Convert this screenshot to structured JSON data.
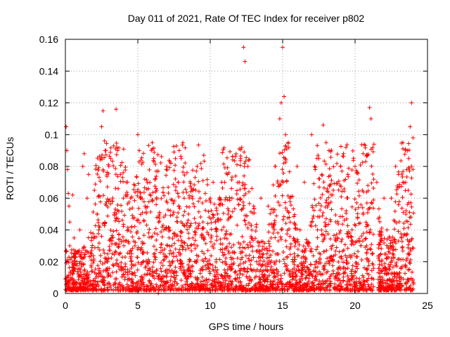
{
  "chart_data": {
    "type": "scatter",
    "title": "Day 011 of 2021, Rate Of TEC Index for receiver p802",
    "xlabel": "GPS time / hours",
    "ylabel": "ROTI / TECUs",
    "xlim": [
      0,
      25
    ],
    "ylim": [
      0,
      0.16
    ],
    "xticks": [
      "0",
      "5",
      "10",
      "15",
      "20",
      "25"
    ],
    "yticks": [
      "0",
      "0.02",
      "0.04",
      "0.06",
      "0.08",
      "0.1",
      "0.12",
      "0.14",
      "0.16"
    ],
    "grid": true,
    "marker": "plus",
    "color": "#ff0000",
    "series": [
      {
        "x": [
          0.05,
          0.1,
          0.15,
          0.2,
          0.25,
          0.3,
          0.5,
          0.6,
          1.2,
          1.3,
          1.5,
          1.6,
          2.0,
          2.2,
          2.5,
          2.6,
          2.7,
          2.8,
          3.0,
          3.5,
          3.6,
          3.8,
          4.0,
          4.2,
          4.5,
          5.0,
          5.1,
          5.2,
          5.5,
          6.0,
          6.1,
          6.3,
          6.5,
          7.0,
          7.5,
          7.6,
          7.8,
          8.0,
          8.2,
          8.5,
          9.0,
          9.1,
          9.3,
          9.5,
          10.0,
          10.2,
          10.5,
          11.0,
          11.5,
          12.0,
          12.1,
          12.3,
          12.4,
          12.6,
          13.0,
          13.5,
          14.0,
          14.5,
          14.8,
          14.9,
          15.0,
          15.1,
          15.2,
          15.5,
          16.0,
          16.5,
          17.0,
          17.2,
          17.5,
          17.8,
          18.0,
          18.2,
          18.5,
          19.0,
          19.2,
          19.5,
          20.0,
          20.5,
          21.0,
          21.1,
          21.3,
          21.5,
          22.0,
          22.5,
          22.8,
          23.0,
          23.3,
          23.5,
          23.7,
          23.8,
          23.9,
          24.0,
          0.3,
          1.0,
          2.3,
          3.2,
          4.8,
          6.8,
          8.8,
          10.8,
          12.8,
          14.2,
          16.2,
          18.8,
          20.8,
          22.2,
          23.2,
          0.8,
          1.8,
          2.9,
          4.3,
          5.8,
          7.2,
          9.8,
          11.2,
          13.2,
          15.8,
          17.3,
          19.8,
          21.8,
          22.6
        ],
        "y": [
          0.105,
          0.09,
          0.078,
          0.063,
          0.055,
          0.045,
          0.062,
          0.035,
          0.08,
          0.088,
          0.06,
          0.075,
          0.065,
          0.05,
          0.105,
          0.115,
          0.096,
          0.09,
          0.08,
          0.116,
          0.09,
          0.075,
          0.06,
          0.07,
          0.06,
          0.1,
          0.09,
          0.06,
          0.055,
          0.095,
          0.085,
          0.065,
          0.05,
          0.08,
          0.089,
          0.085,
          0.07,
          0.085,
          0.06,
          0.05,
          0.065,
          0.08,
          0.06,
          0.045,
          0.06,
          0.07,
          0.05,
          0.07,
          0.06,
          0.091,
          0.085,
          0.155,
          0.146,
          0.08,
          0.055,
          0.06,
          0.055,
          0.08,
          0.11,
          0.12,
          0.155,
          0.124,
          0.1,
          0.06,
          0.08,
          0.07,
          0.1,
          0.08,
          0.085,
          0.106,
          0.095,
          0.09,
          0.065,
          0.08,
          0.088,
          0.075,
          0.08,
          0.065,
          0.117,
          0.11,
          0.094,
          0.07,
          0.06,
          0.06,
          0.08,
          0.075,
          0.095,
          0.09,
          0.085,
          0.105,
          0.12,
          0.098,
          0.03,
          0.04,
          0.04,
          0.035,
          0.03,
          0.04,
          0.035,
          0.04,
          0.03,
          0.035,
          0.04,
          0.035,
          0.03,
          0.04,
          0.035,
          0.02,
          0.025,
          0.02,
          0.015,
          0.02,
          0.025,
          0.02,
          0.015,
          0.02,
          0.025,
          0.02,
          0.015,
          0.02,
          0.025
        ]
      }
    ]
  }
}
